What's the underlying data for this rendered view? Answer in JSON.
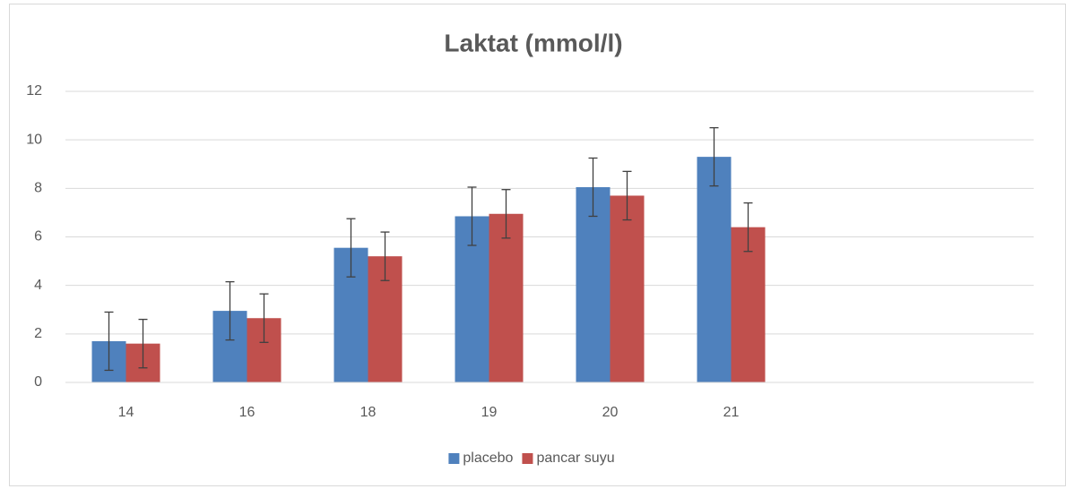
{
  "chart_data": {
    "type": "bar",
    "title": "Laktat (mmol/l)",
    "categories": [
      "14",
      "16",
      "18",
      "19",
      "20",
      "21",
      null,
      null
    ],
    "series": [
      {
        "name": "placebo",
        "color": "#4f81bd",
        "values": [
          1.7,
          2.95,
          5.55,
          6.85,
          8.05,
          9.3,
          null,
          null
        ],
        "errors": [
          1.2,
          1.2,
          1.2,
          1.2,
          1.2,
          1.2,
          null,
          null
        ]
      },
      {
        "name": "pancar suyu",
        "color": "#c0504d",
        "values": [
          1.6,
          2.65,
          5.2,
          6.95,
          7.7,
          6.4,
          null,
          null
        ],
        "errors": [
          1.0,
          1.0,
          1.0,
          1.0,
          1.0,
          1.0,
          null,
          null
        ]
      }
    ],
    "ylim": [
      0,
      12
    ],
    "yticks": [
      0,
      2,
      4,
      6,
      8,
      10,
      12
    ],
    "grid": true,
    "legend": "bottom"
  }
}
